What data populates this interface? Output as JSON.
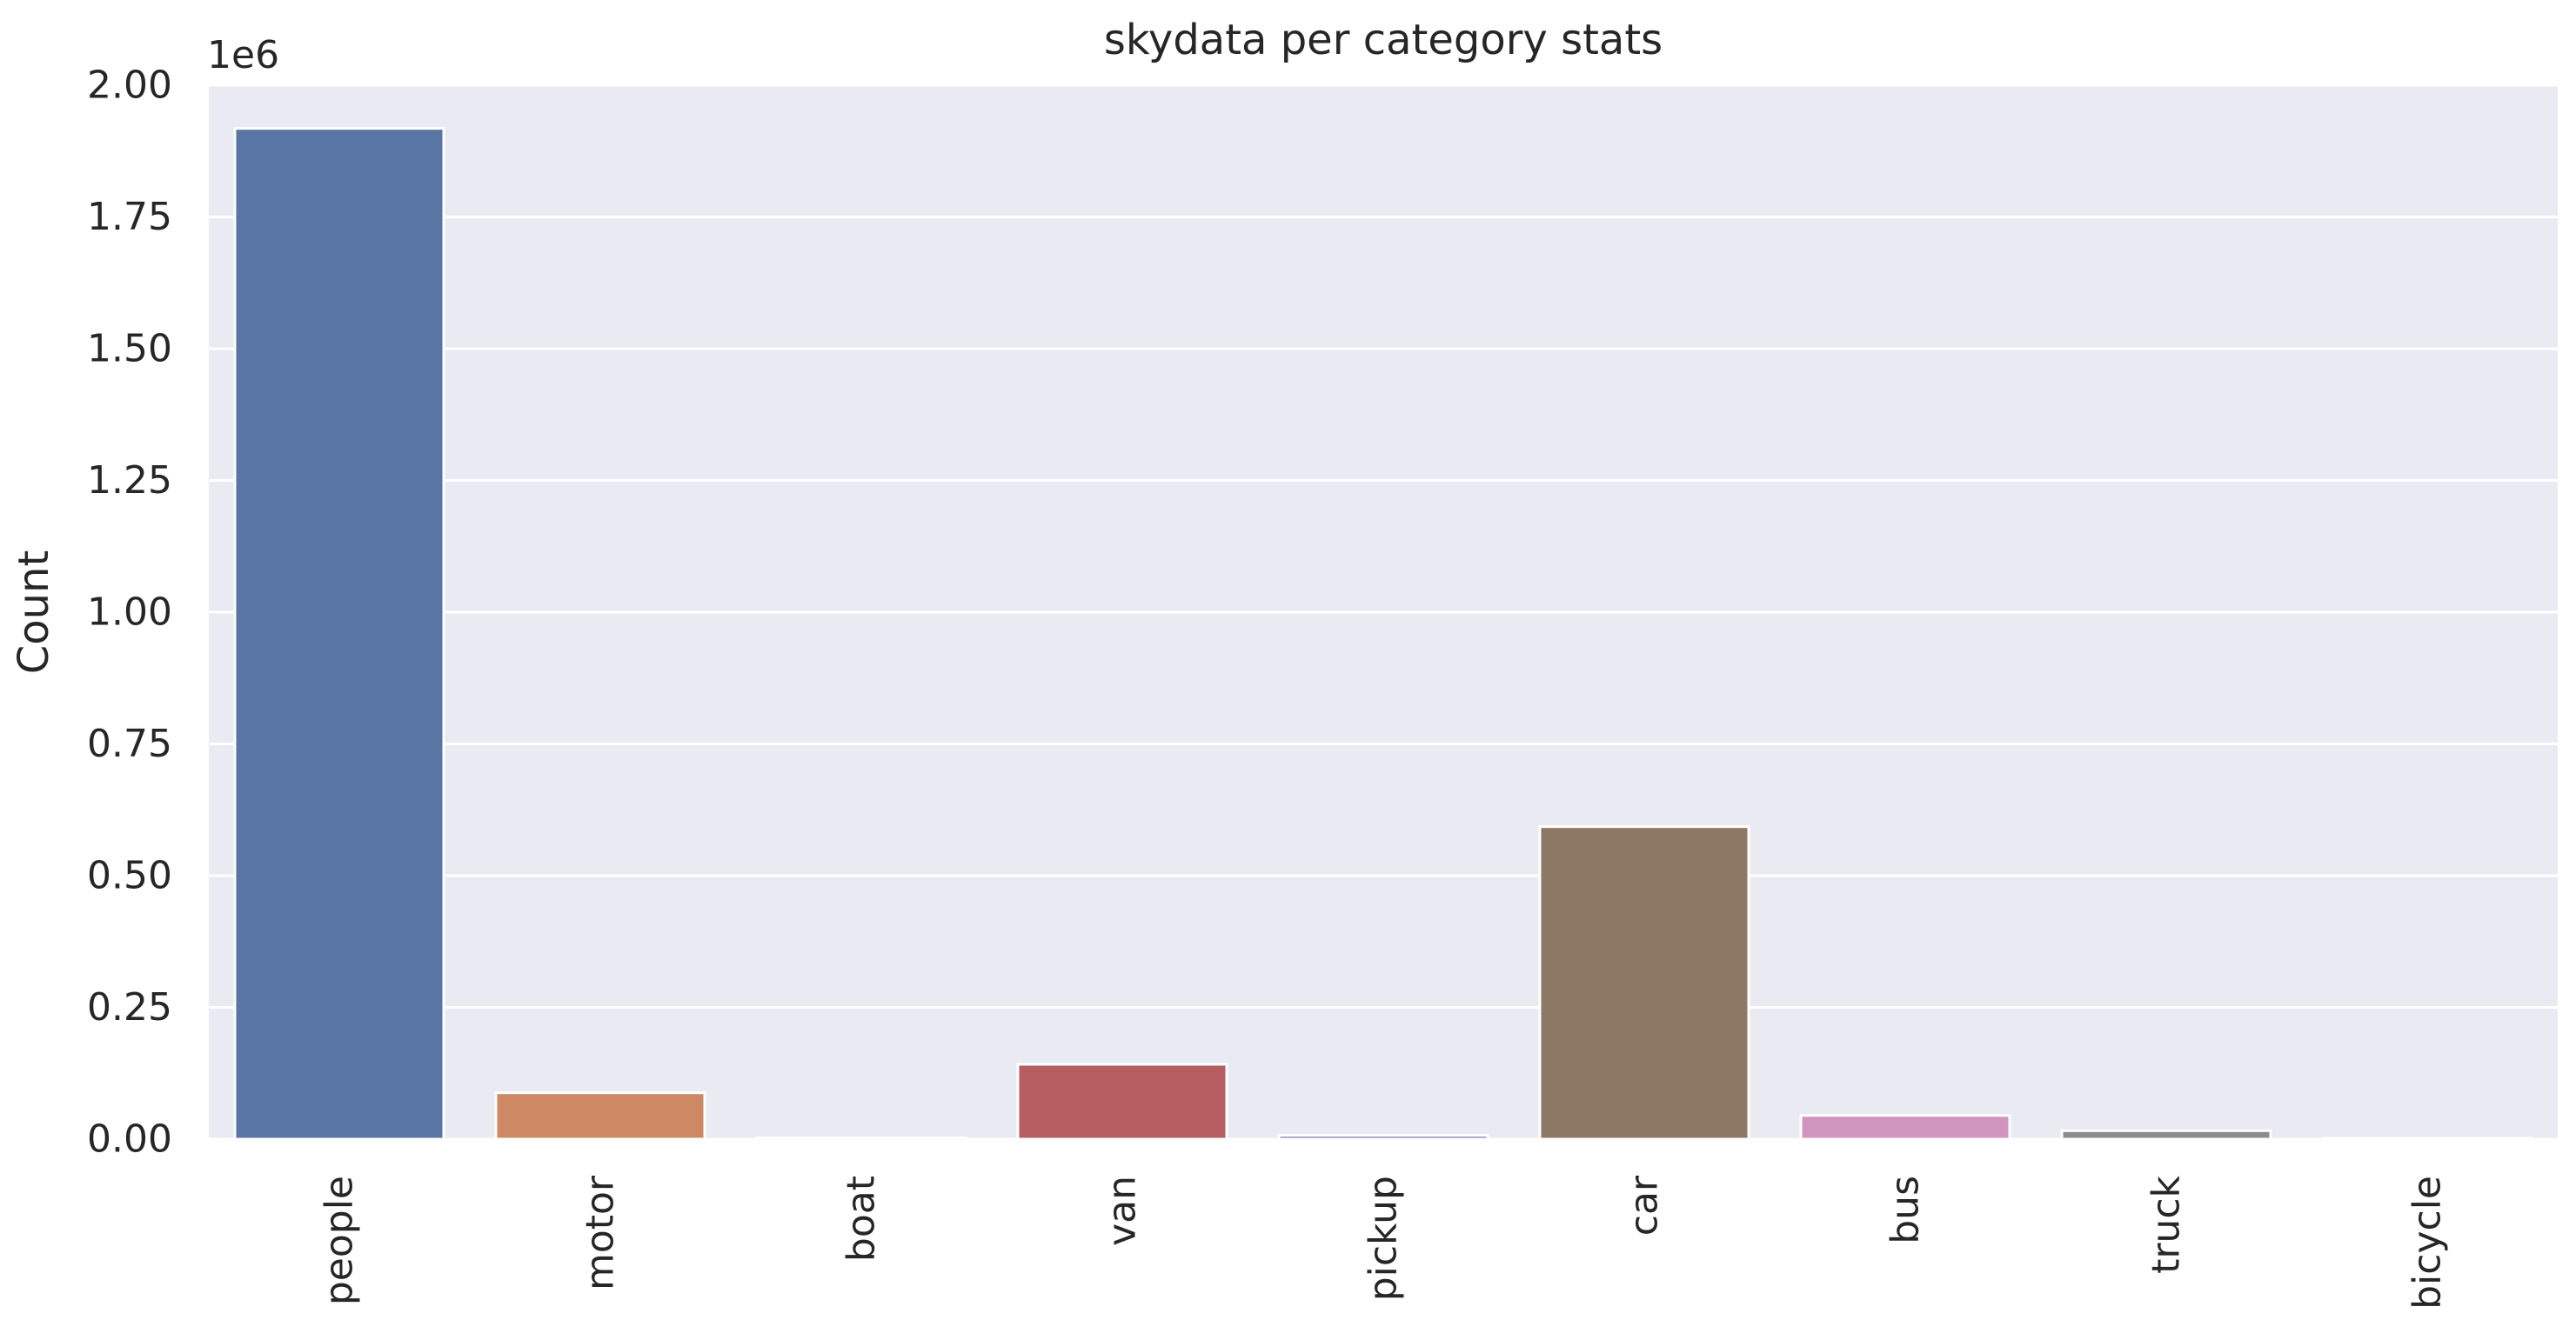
{
  "chart_data": {
    "type": "bar",
    "title": "skydata per category stats",
    "xlabel": "",
    "ylabel": "Count",
    "y_offset_label": "1e6",
    "categories": [
      "people",
      "motor",
      "boat",
      "van",
      "pickup",
      "car",
      "bus",
      "truck",
      "bicycle"
    ],
    "values": [
      1918000,
      88000,
      2500,
      142000,
      7000,
      593000,
      45000,
      16000,
      1000
    ],
    "colors": [
      "#5975a4",
      "#cc8963",
      "#5f9e6e",
      "#b55d60",
      "#857aab",
      "#8d7866",
      "#d095bf",
      "#8c8c8c",
      "#c1b37f"
    ],
    "ylim": [
      0,
      2000000
    ],
    "yticks": [
      0,
      250000,
      500000,
      750000,
      1000000,
      1250000,
      1500000,
      1750000,
      2000000
    ],
    "ytick_labels": [
      "0.00",
      "0.25",
      "0.50",
      "0.75",
      "1.00",
      "1.25",
      "1.50",
      "1.75",
      "2.00"
    ],
    "grid": true,
    "legend": false,
    "style": {
      "plot_background": "#eaeaf2",
      "grid_color": "#ffffff",
      "bar_edge_color": "#ffffff"
    }
  }
}
